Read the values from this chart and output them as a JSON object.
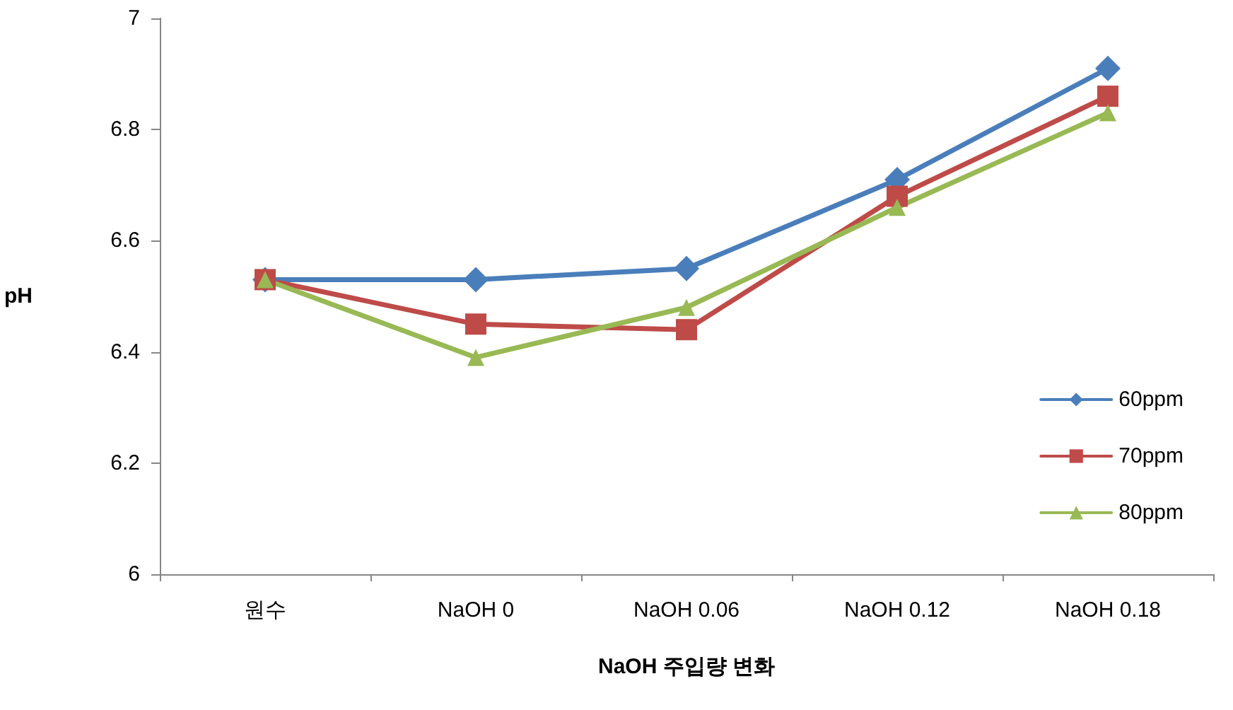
{
  "chart_data": {
    "type": "line",
    "xlabel": "NaOH 주입량 변화",
    "ylabel": "pH",
    "categories": [
      "원수",
      "NaOH 0",
      "NaOH 0.06",
      "NaOH 0.12",
      "NaOH 0.18"
    ],
    "series": [
      {
        "name": "60ppm",
        "color": "#4a7ebb",
        "marker": "diamond",
        "values": [
          6.53,
          6.53,
          6.55,
          6.71,
          6.91
        ]
      },
      {
        "name": "70ppm",
        "color": "#be4b48",
        "marker": "square",
        "values": [
          6.53,
          6.45,
          6.44,
          6.68,
          6.86
        ]
      },
      {
        "name": "80ppm",
        "color": "#98b954",
        "marker": "triangle",
        "values": [
          6.53,
          6.39,
          6.48,
          6.66,
          6.83
        ]
      }
    ],
    "ylim": [
      6,
      7
    ],
    "yticks": [
      6,
      6.2,
      6.4,
      6.6,
      6.8,
      7
    ],
    "grid": false,
    "legend": "right"
  }
}
